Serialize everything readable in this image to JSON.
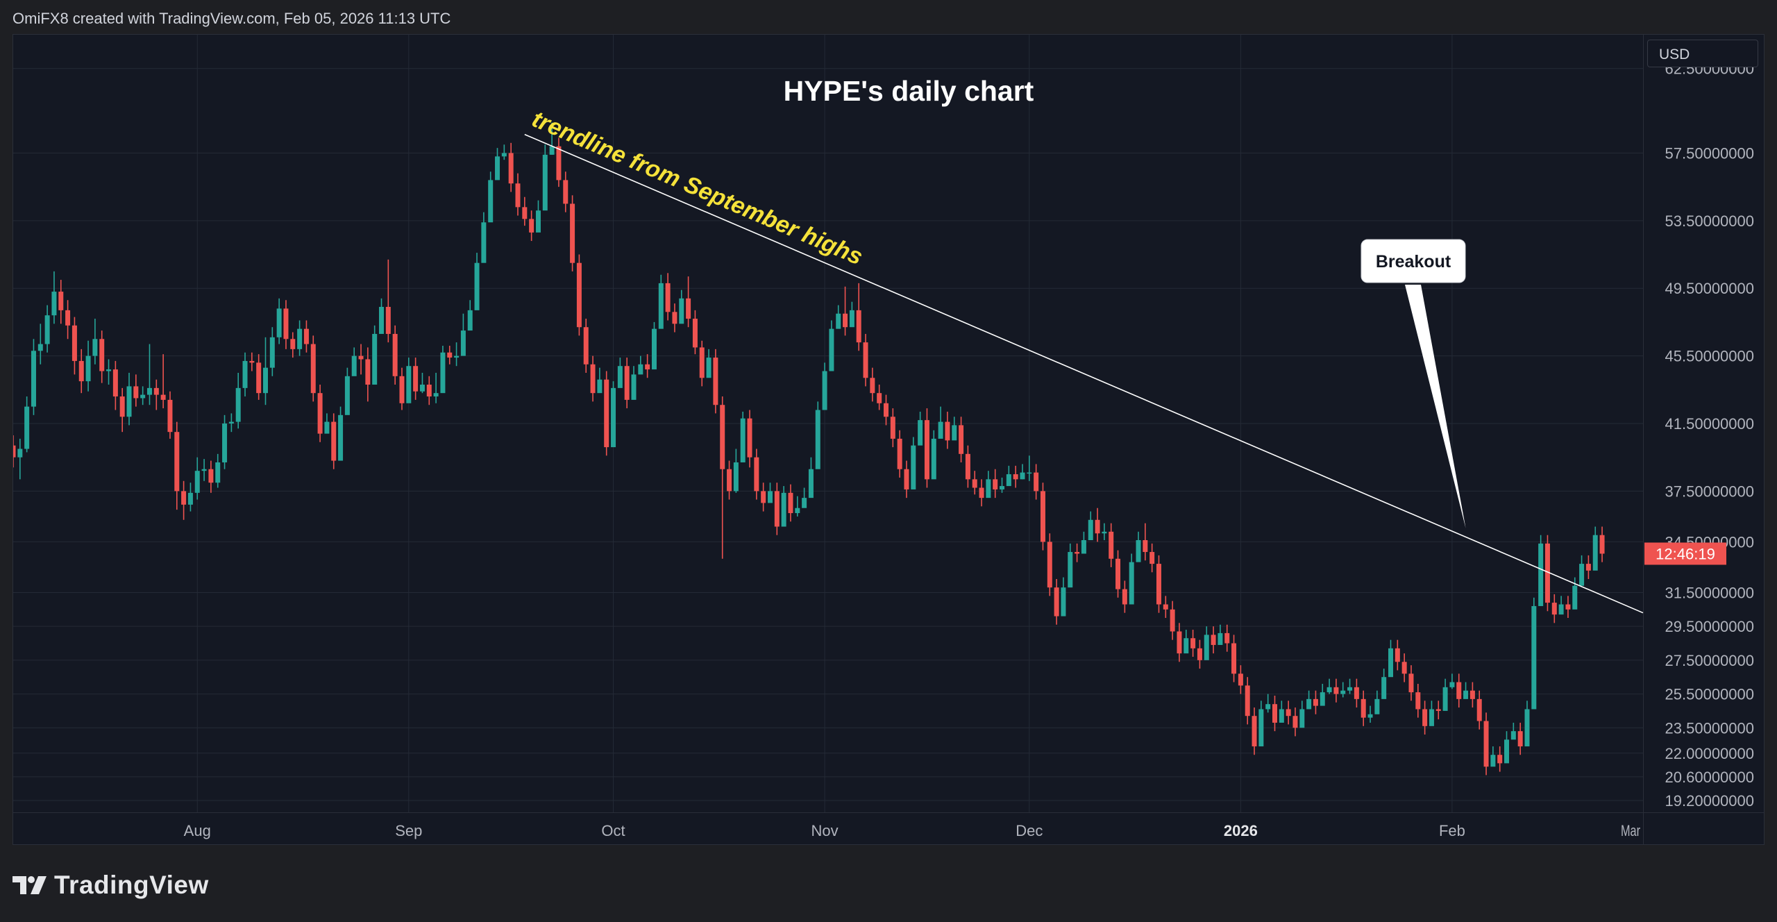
{
  "header": {
    "attribution": "OmiFX8 created with TradingView.com, Feb 05, 2026 11:13 UTC"
  },
  "currency": "USD",
  "footer": {
    "brand": "TradingView",
    "logo_icon": "tradingview-logo-icon"
  },
  "colors": {
    "up": "#26a69a",
    "down": "#ef5350",
    "background": "#141823",
    "grid": "#242a36",
    "title": "#ffffff",
    "annotation": "#f5e23a",
    "trendline": "#ffffff",
    "last_price_badge": "#ef5350"
  },
  "chart_data": {
    "type": "candlestick",
    "title": "HYPE's daily chart",
    "xlabel": "",
    "ylabel": "",
    "ylim": [
      18.5,
      64.5
    ],
    "x_range": [
      "2025-07-05",
      "2026-03-01"
    ],
    "grid": true,
    "y_ticks": [
      "62.50000000",
      "57.50000000",
      "53.50000000",
      "49.50000000",
      "45.50000000",
      "41.50000000",
      "37.50000000",
      "34.50000000",
      "31.50000000",
      "29.50000000",
      "27.50000000",
      "25.50000000",
      "23.50000000",
      "22.00000000",
      "20.60000000",
      "19.20000000"
    ],
    "x_ticks": [
      {
        "label": "Aug",
        "date": "2025-08-01",
        "bold": false
      },
      {
        "label": "Sep",
        "date": "2025-09-01",
        "bold": false
      },
      {
        "label": "Oct",
        "date": "2025-10-01",
        "bold": false
      },
      {
        "label": "Nov",
        "date": "2025-11-01",
        "bold": false
      },
      {
        "label": "Dec",
        "date": "2025-12-01",
        "bold": false
      },
      {
        "label": "2026",
        "date": "2026-01-01",
        "bold": true
      },
      {
        "label": "Feb",
        "date": "2026-02-01",
        "bold": false
      },
      {
        "label": "Mar",
        "date": "2026-03-01",
        "bold": false
      }
    ],
    "last_price_label": "12:46:19",
    "annotations": [
      {
        "text": "trendline from September highs"
      },
      {
        "text": "Breakout"
      }
    ],
    "trendline": {
      "start": {
        "date": "2025-09-18",
        "price": 58.6
      },
      "end": {
        "date": "2026-03-01",
        "price": 30.3
      }
    },
    "callout_target": {
      "date": "2026-02-03",
      "price": 35.3
    },
    "start_date": "2025-07-05",
    "candles": [
      [
        40.2,
        39.5,
        40.8,
        38.9
      ],
      [
        39.5,
        40.0,
        40.6,
        38.2
      ],
      [
        40.0,
        42.5,
        43.1,
        39.8
      ],
      [
        42.5,
        45.8,
        46.5,
        42.0
      ],
      [
        45.8,
        46.2,
        47.4,
        45.0
      ],
      [
        46.2,
        47.9,
        48.5,
        45.7
      ],
      [
        47.9,
        49.3,
        50.5,
        47.4
      ],
      [
        49.3,
        48.2,
        50.0,
        47.4
      ],
      [
        48.2,
        47.3,
        48.8,
        46.5
      ],
      [
        47.3,
        45.2,
        47.8,
        44.4
      ],
      [
        45.2,
        44.0,
        45.9,
        43.3
      ],
      [
        44.0,
        45.5,
        46.4,
        43.4
      ],
      [
        45.5,
        46.5,
        47.7,
        45.0
      ],
      [
        46.5,
        44.6,
        47.0,
        43.9
      ],
      [
        44.6,
        44.7,
        45.3,
        43.8
      ],
      [
        44.7,
        43.1,
        45.2,
        42.3
      ],
      [
        43.1,
        41.9,
        43.6,
        41.0
      ],
      [
        41.9,
        43.7,
        44.5,
        41.4
      ],
      [
        43.7,
        43.0,
        44.4,
        42.5
      ],
      [
        43.0,
        43.2,
        43.7,
        42.6
      ],
      [
        43.2,
        43.6,
        46.2,
        42.6
      ],
      [
        43.6,
        43.2,
        44.1,
        42.3
      ],
      [
        43.2,
        42.9,
        45.6,
        42.4
      ],
      [
        42.9,
        41.0,
        43.4,
        40.6
      ],
      [
        41.0,
        37.5,
        41.6,
        36.4
      ],
      [
        37.5,
        36.7,
        38.1,
        35.8
      ],
      [
        36.7,
        37.4,
        38.0,
        36.3
      ],
      [
        37.4,
        38.7,
        39.5,
        37.0
      ],
      [
        38.7,
        38.8,
        39.4,
        38.1
      ],
      [
        38.8,
        38.0,
        39.3,
        37.4
      ],
      [
        38.0,
        39.2,
        39.7,
        37.7
      ],
      [
        39.2,
        41.5,
        42.0,
        38.8
      ],
      [
        41.5,
        41.6,
        42.1,
        41.0
      ],
      [
        41.6,
        43.6,
        44.5,
        41.2
      ],
      [
        43.6,
        45.2,
        45.7,
        43.1
      ],
      [
        45.2,
        45.1,
        45.7,
        44.6
      ],
      [
        45.1,
        43.3,
        45.6,
        42.9
      ],
      [
        43.3,
        44.8,
        46.6,
        42.6
      ],
      [
        44.8,
        46.6,
        47.2,
        44.3
      ],
      [
        46.6,
        48.3,
        48.9,
        46.2
      ],
      [
        48.3,
        46.5,
        48.8,
        45.9
      ],
      [
        46.5,
        45.9,
        46.9,
        45.4
      ],
      [
        45.9,
        47.1,
        47.6,
        45.5
      ],
      [
        47.1,
        46.2,
        47.6,
        45.7
      ],
      [
        46.2,
        43.3,
        46.7,
        42.8
      ],
      [
        43.3,
        40.9,
        43.8,
        40.4
      ],
      [
        40.9,
        41.6,
        42.1,
        41.2
      ],
      [
        41.6,
        39.3,
        42.1,
        38.8
      ],
      [
        39.3,
        42.0,
        42.5,
        41.6
      ],
      [
        42.0,
        44.3,
        44.8,
        43.9
      ],
      [
        44.3,
        45.5,
        46.0,
        45.1
      ],
      [
        45.5,
        45.3,
        46.2,
        44.4
      ],
      [
        45.3,
        43.8,
        46.0,
        42.8
      ],
      [
        43.8,
        46.8,
        47.3,
        46.4
      ],
      [
        46.8,
        48.4,
        48.9,
        48.0
      ],
      [
        48.4,
        46.8,
        51.2,
        46.3
      ],
      [
        46.8,
        44.3,
        47.3,
        43.8
      ],
      [
        44.3,
        42.7,
        44.8,
        42.3
      ],
      [
        42.7,
        44.9,
        45.4,
        44.5
      ],
      [
        44.9,
        43.4,
        45.4,
        42.9
      ],
      [
        43.4,
        43.8,
        44.5,
        43.3
      ],
      [
        43.8,
        43.1,
        44.3,
        42.6
      ],
      [
        43.1,
        43.3,
        44.5,
        42.7
      ],
      [
        43.3,
        45.7,
        46.1,
        45.3
      ],
      [
        45.7,
        45.4,
        46.1,
        45.0
      ],
      [
        45.4,
        45.5,
        46.3,
        44.9
      ],
      [
        45.5,
        47.0,
        48.0,
        46.5
      ],
      [
        47.0,
        48.2,
        48.8,
        47.8
      ],
      [
        48.2,
        51.0,
        51.6,
        50.6
      ],
      [
        51.0,
        53.4,
        54.0,
        52.9
      ],
      [
        53.4,
        55.9,
        56.4,
        55.5
      ],
      [
        55.9,
        57.3,
        57.8,
        56.9
      ],
      [
        57.3,
        57.5,
        58.0,
        57.1
      ],
      [
        57.5,
        55.7,
        58.1,
        55.2
      ],
      [
        55.7,
        54.3,
        56.3,
        53.8
      ],
      [
        54.3,
        53.6,
        54.9,
        53.2
      ],
      [
        53.6,
        52.8,
        54.1,
        52.3
      ],
      [
        52.8,
        54.1,
        54.7,
        53.7
      ],
      [
        54.1,
        57.4,
        58.0,
        56.9
      ],
      [
        57.4,
        57.9,
        59.3,
        57.4
      ],
      [
        57.9,
        55.9,
        58.4,
        55.5
      ],
      [
        55.9,
        54.5,
        56.4,
        54.0
      ],
      [
        54.5,
        51.0,
        55.0,
        50.5
      ],
      [
        51.0,
        47.2,
        51.5,
        46.7
      ],
      [
        47.2,
        45.0,
        47.7,
        44.5
      ],
      [
        45.0,
        43.3,
        45.5,
        42.8
      ],
      [
        43.3,
        44.1,
        44.8,
        43.7
      ],
      [
        44.1,
        40.1,
        44.6,
        39.6
      ],
      [
        40.1,
        43.6,
        44.0,
        43.2
      ],
      [
        43.6,
        44.9,
        45.4,
        44.4
      ],
      [
        44.9,
        42.9,
        45.4,
        42.4
      ],
      [
        42.9,
        44.4,
        44.9,
        44.0
      ],
      [
        44.4,
        45.0,
        45.5,
        44.6
      ],
      [
        45.0,
        44.7,
        45.6,
        44.2
      ],
      [
        44.7,
        47.1,
        47.5,
        46.7
      ],
      [
        47.1,
        49.8,
        50.3,
        49.4
      ],
      [
        49.8,
        48.1,
        50.4,
        47.6
      ],
      [
        48.1,
        47.4,
        48.6,
        46.9
      ],
      [
        47.4,
        48.9,
        49.4,
        48.5
      ],
      [
        48.9,
        47.7,
        50.2,
        47.2
      ],
      [
        47.7,
        46.0,
        48.2,
        45.6
      ],
      [
        46.0,
        44.2,
        46.4,
        43.7
      ],
      [
        44.2,
        45.4,
        45.9,
        45.0
      ],
      [
        45.4,
        42.6,
        45.9,
        42.1
      ],
      [
        42.6,
        38.8,
        43.1,
        33.5
      ],
      [
        38.8,
        37.5,
        39.3,
        37.0
      ],
      [
        37.5,
        39.2,
        40.0,
        37.4
      ],
      [
        39.2,
        41.8,
        42.2,
        41.4
      ],
      [
        41.8,
        39.5,
        42.3,
        38.9
      ],
      [
        39.5,
        37.5,
        40.0,
        37.0
      ],
      [
        37.5,
        36.8,
        38.0,
        36.3
      ],
      [
        36.8,
        37.5,
        38.0,
        37.1
      ],
      [
        37.5,
        35.4,
        38.0,
        34.9
      ],
      [
        35.4,
        37.4,
        37.8,
        37.0
      ],
      [
        37.4,
        36.2,
        37.9,
        35.7
      ],
      [
        36.2,
        36.5,
        37.2,
        36.0
      ],
      [
        36.5,
        37.1,
        37.7,
        36.7
      ],
      [
        37.1,
        38.8,
        39.5,
        38.6
      ],
      [
        38.8,
        42.3,
        42.8,
        41.8
      ],
      [
        42.3,
        44.6,
        45.1,
        44.1
      ],
      [
        44.6,
        47.1,
        47.6,
        46.7
      ],
      [
        47.1,
        48.0,
        48.5,
        47.6
      ],
      [
        48.0,
        47.2,
        49.6,
        46.7
      ],
      [
        47.2,
        48.2,
        48.7,
        47.8
      ],
      [
        48.2,
        46.3,
        49.8,
        45.8
      ],
      [
        46.3,
        44.2,
        46.8,
        43.7
      ],
      [
        44.2,
        43.3,
        44.8,
        42.8
      ],
      [
        43.3,
        42.7,
        43.8,
        42.3
      ],
      [
        42.7,
        41.9,
        43.2,
        41.4
      ],
      [
        41.9,
        40.6,
        42.4,
        40.1
      ],
      [
        40.6,
        38.8,
        41.1,
        38.3
      ],
      [
        38.8,
        37.6,
        39.3,
        37.1
      ],
      [
        37.6,
        40.2,
        40.7,
        39.8
      ],
      [
        40.2,
        41.7,
        42.2,
        41.3
      ],
      [
        41.7,
        38.2,
        42.4,
        37.7
      ],
      [
        38.2,
        40.6,
        41.1,
        40.2
      ],
      [
        40.6,
        41.6,
        42.5,
        41.2
      ],
      [
        41.6,
        40.5,
        42.2,
        40.0
      ],
      [
        40.5,
        41.4,
        41.9,
        41.0
      ],
      [
        41.4,
        39.7,
        41.9,
        39.2
      ],
      [
        39.7,
        38.2,
        40.2,
        37.7
      ],
      [
        38.2,
        37.7,
        38.7,
        37.3
      ],
      [
        37.7,
        37.1,
        38.2,
        36.6
      ],
      [
        37.1,
        38.2,
        38.7,
        37.8
      ],
      [
        38.2,
        37.6,
        38.8,
        37.1
      ],
      [
        37.6,
        37.8,
        38.3,
        37.4
      ],
      [
        37.8,
        38.5,
        39.0,
        38.1
      ],
      [
        38.5,
        38.2,
        39.0,
        37.7
      ],
      [
        38.2,
        38.6,
        39.1,
        38.2
      ],
      [
        38.6,
        38.6,
        39.6,
        38.1
      ],
      [
        38.6,
        37.5,
        39.1,
        37.0
      ],
      [
        37.5,
        34.5,
        38.0,
        34.0
      ],
      [
        34.5,
        31.8,
        35.0,
        31.3
      ],
      [
        31.8,
        30.1,
        32.3,
        29.6
      ],
      [
        30.1,
        31.8,
        32.4,
        31.4
      ],
      [
        31.8,
        33.9,
        34.4,
        33.5
      ],
      [
        33.9,
        33.8,
        34.4,
        33.3
      ],
      [
        33.8,
        34.6,
        35.1,
        34.2
      ],
      [
        34.6,
        35.8,
        36.3,
        35.4
      ],
      [
        35.8,
        35.0,
        36.5,
        34.5
      ],
      [
        35.0,
        35.1,
        35.6,
        34.6
      ],
      [
        35.1,
        33.5,
        35.6,
        33.0
      ],
      [
        33.5,
        31.7,
        34.0,
        31.2
      ],
      [
        31.7,
        30.8,
        32.2,
        30.3
      ],
      [
        30.8,
        33.3,
        33.8,
        32.9
      ],
      [
        33.3,
        34.6,
        35.1,
        34.2
      ],
      [
        34.6,
        33.9,
        35.6,
        33.4
      ],
      [
        33.9,
        33.2,
        34.4,
        32.7
      ],
      [
        33.2,
        30.8,
        33.7,
        30.3
      ],
      [
        30.8,
        30.5,
        31.3,
        30.0
      ],
      [
        30.5,
        29.2,
        31.0,
        28.7
      ],
      [
        29.2,
        27.9,
        29.7,
        27.4
      ],
      [
        27.9,
        28.8,
        29.3,
        28.4
      ],
      [
        28.8,
        28.2,
        29.3,
        27.7
      ],
      [
        28.2,
        27.5,
        28.7,
        27.0
      ],
      [
        27.5,
        29.0,
        29.5,
        28.6
      ],
      [
        29.0,
        28.4,
        29.5,
        27.9
      ],
      [
        28.4,
        29.1,
        29.6,
        28.7
      ],
      [
        29.1,
        28.5,
        29.6,
        28.0
      ],
      [
        28.5,
        26.7,
        29.0,
        26.2
      ],
      [
        26.7,
        26.0,
        27.2,
        25.5
      ],
      [
        26.0,
        24.2,
        26.5,
        23.7
      ],
      [
        24.2,
        22.4,
        24.7,
        21.9
      ],
      [
        22.4,
        24.6,
        25.1,
        24.2
      ],
      [
        24.6,
        24.9,
        25.5,
        24.4
      ],
      [
        24.9,
        23.8,
        25.4,
        23.3
      ],
      [
        23.8,
        24.6,
        25.1,
        24.2
      ],
      [
        24.6,
        24.2,
        25.1,
        23.7
      ],
      [
        24.2,
        23.5,
        24.7,
        23.0
      ],
      [
        23.5,
        24.6,
        25.1,
        24.2
      ],
      [
        24.6,
        25.2,
        25.7,
        24.8
      ],
      [
        25.2,
        24.8,
        25.7,
        24.3
      ],
      [
        24.8,
        25.6,
        26.1,
        25.2
      ],
      [
        25.6,
        25.9,
        26.4,
        25.5
      ],
      [
        25.9,
        25.5,
        26.4,
        25.0
      ],
      [
        25.5,
        25.7,
        26.2,
        25.3
      ],
      [
        25.7,
        25.9,
        26.4,
        25.5
      ],
      [
        25.9,
        25.2,
        26.4,
        24.7
      ],
      [
        25.2,
        24.1,
        25.7,
        23.6
      ],
      [
        24.1,
        24.3,
        24.8,
        23.8
      ],
      [
        24.3,
        25.2,
        25.7,
        24.8
      ],
      [
        25.2,
        26.5,
        27.0,
        26.1
      ],
      [
        26.5,
        28.2,
        28.7,
        27.8
      ],
      [
        28.2,
        27.4,
        28.7,
        26.9
      ],
      [
        27.4,
        26.7,
        27.9,
        26.2
      ],
      [
        26.7,
        25.6,
        27.2,
        25.1
      ],
      [
        25.6,
        24.6,
        26.1,
        24.1
      ],
      [
        24.6,
        23.6,
        25.1,
        23.1
      ],
      [
        23.6,
        24.6,
        25.1,
        24.2
      ],
      [
        24.6,
        24.5,
        25.1,
        24.0
      ],
      [
        24.5,
        25.9,
        26.4,
        25.5
      ],
      [
        25.9,
        26.2,
        26.7,
        25.8
      ],
      [
        26.2,
        25.2,
        26.7,
        24.7
      ],
      [
        25.2,
        25.7,
        26.2,
        25.3
      ],
      [
        25.7,
        25.2,
        26.2,
        24.7
      ],
      [
        25.2,
        23.9,
        25.7,
        23.4
      ],
      [
        23.9,
        21.2,
        24.4,
        20.7
      ],
      [
        21.2,
        21.9,
        22.4,
        21.5
      ],
      [
        21.9,
        21.4,
        22.4,
        20.9
      ],
      [
        21.4,
        22.8,
        23.3,
        22.4
      ],
      [
        22.8,
        23.3,
        23.8,
        22.9
      ],
      [
        23.3,
        22.4,
        23.8,
        21.9
      ],
      [
        22.4,
        24.6,
        25.1,
        24.2
      ],
      [
        24.6,
        30.7,
        31.2,
        30.3
      ],
      [
        30.7,
        34.4,
        34.9,
        34.0
      ],
      [
        34.4,
        30.9,
        34.9,
        30.4
      ],
      [
        30.9,
        30.2,
        31.4,
        29.7
      ],
      [
        30.2,
        30.8,
        31.3,
        30.4
      ],
      [
        30.8,
        30.5,
        31.3,
        30.0
      ],
      [
        30.5,
        31.9,
        32.4,
        31.5
      ],
      [
        31.9,
        33.2,
        33.7,
        32.8
      ],
      [
        33.2,
        32.8,
        33.7,
        32.3
      ],
      [
        32.8,
        34.9,
        35.4,
        34.5
      ],
      [
        34.9,
        33.8,
        35.4,
        33.3
      ]
    ]
  }
}
